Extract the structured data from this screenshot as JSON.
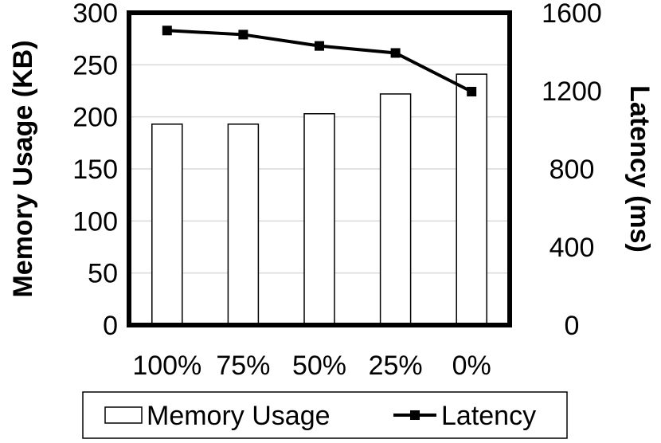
{
  "chart_data": {
    "type": "bar+line",
    "categories": [
      "100%",
      "75%",
      "50%",
      "25%",
      "0%"
    ],
    "series": [
      {
        "name": "Memory Usage",
        "type": "bar",
        "axis": "left",
        "values": [
          193,
          193,
          203,
          222,
          241
        ]
      },
      {
        "name": "Latency",
        "type": "line",
        "axis": "right",
        "values": [
          1509,
          1488,
          1430,
          1394,
          1196
        ]
      }
    ],
    "ylabel": "Memory Usage (KB)",
    "y2label": "Latency (ms)",
    "ylim": [
      0,
      300
    ],
    "yticks": [
      "0",
      "50",
      "100",
      "150",
      "200",
      "250",
      "300"
    ],
    "y2lim": [
      0,
      1600
    ],
    "y2ticks": [
      "0",
      "400",
      "800",
      "1200",
      "1600"
    ],
    "grid": true,
    "legend_position": "bottom",
    "colors": {
      "bar_fill": "#ffffff",
      "bar_stroke": "#000000",
      "line": "#000000",
      "grid": "#d9d9d9"
    }
  }
}
